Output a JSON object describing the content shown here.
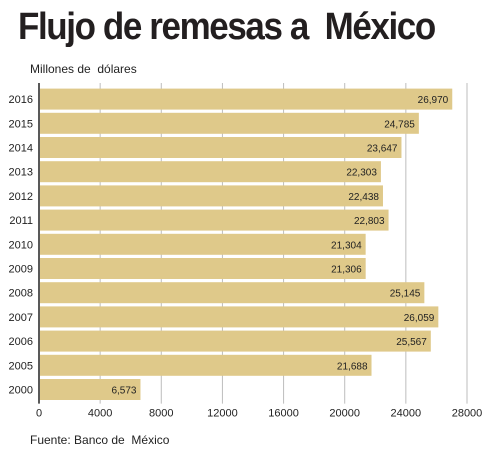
{
  "title": "Flujo de remesas a  México",
  "subtitle": "Millones de  dólares",
  "source": "Fuente: Banco de  México",
  "colors": {
    "bar": "#dfc98a",
    "grid": "#bdbdbd",
    "axis": "#222222"
  },
  "chart_data": {
    "type": "bar",
    "orientation": "horizontal",
    "categories": [
      "2016",
      "2015",
      "2014",
      "2013",
      "2012",
      "2011",
      "2010",
      "2009",
      "2008",
      "2007",
      "2006",
      "2005",
      "2000"
    ],
    "values": [
      26970,
      24785,
      23647,
      22303,
      22438,
      22803,
      21304,
      21306,
      25145,
      26059,
      25567,
      21688,
      6573
    ],
    "value_labels": [
      "26,970",
      "24,785",
      "23,647",
      "22,303",
      "22,438",
      "22,803",
      "21,304",
      "21,306",
      "25,145",
      "26,059",
      "25,567",
      "21,688",
      "6,573"
    ],
    "title": "Flujo de remesas a  México",
    "xlabel": "",
    "ylabel": "Millones de  dólares",
    "xlim": [
      0,
      28000
    ],
    "xticks": [
      0,
      4000,
      8000,
      12000,
      16000,
      20000,
      24000,
      28000
    ],
    "xtick_labels": [
      "0",
      "4000",
      "8000",
      "12000",
      "16000",
      "20000",
      "24000",
      "28000"
    ],
    "grid": "vertical",
    "legend": "none"
  }
}
